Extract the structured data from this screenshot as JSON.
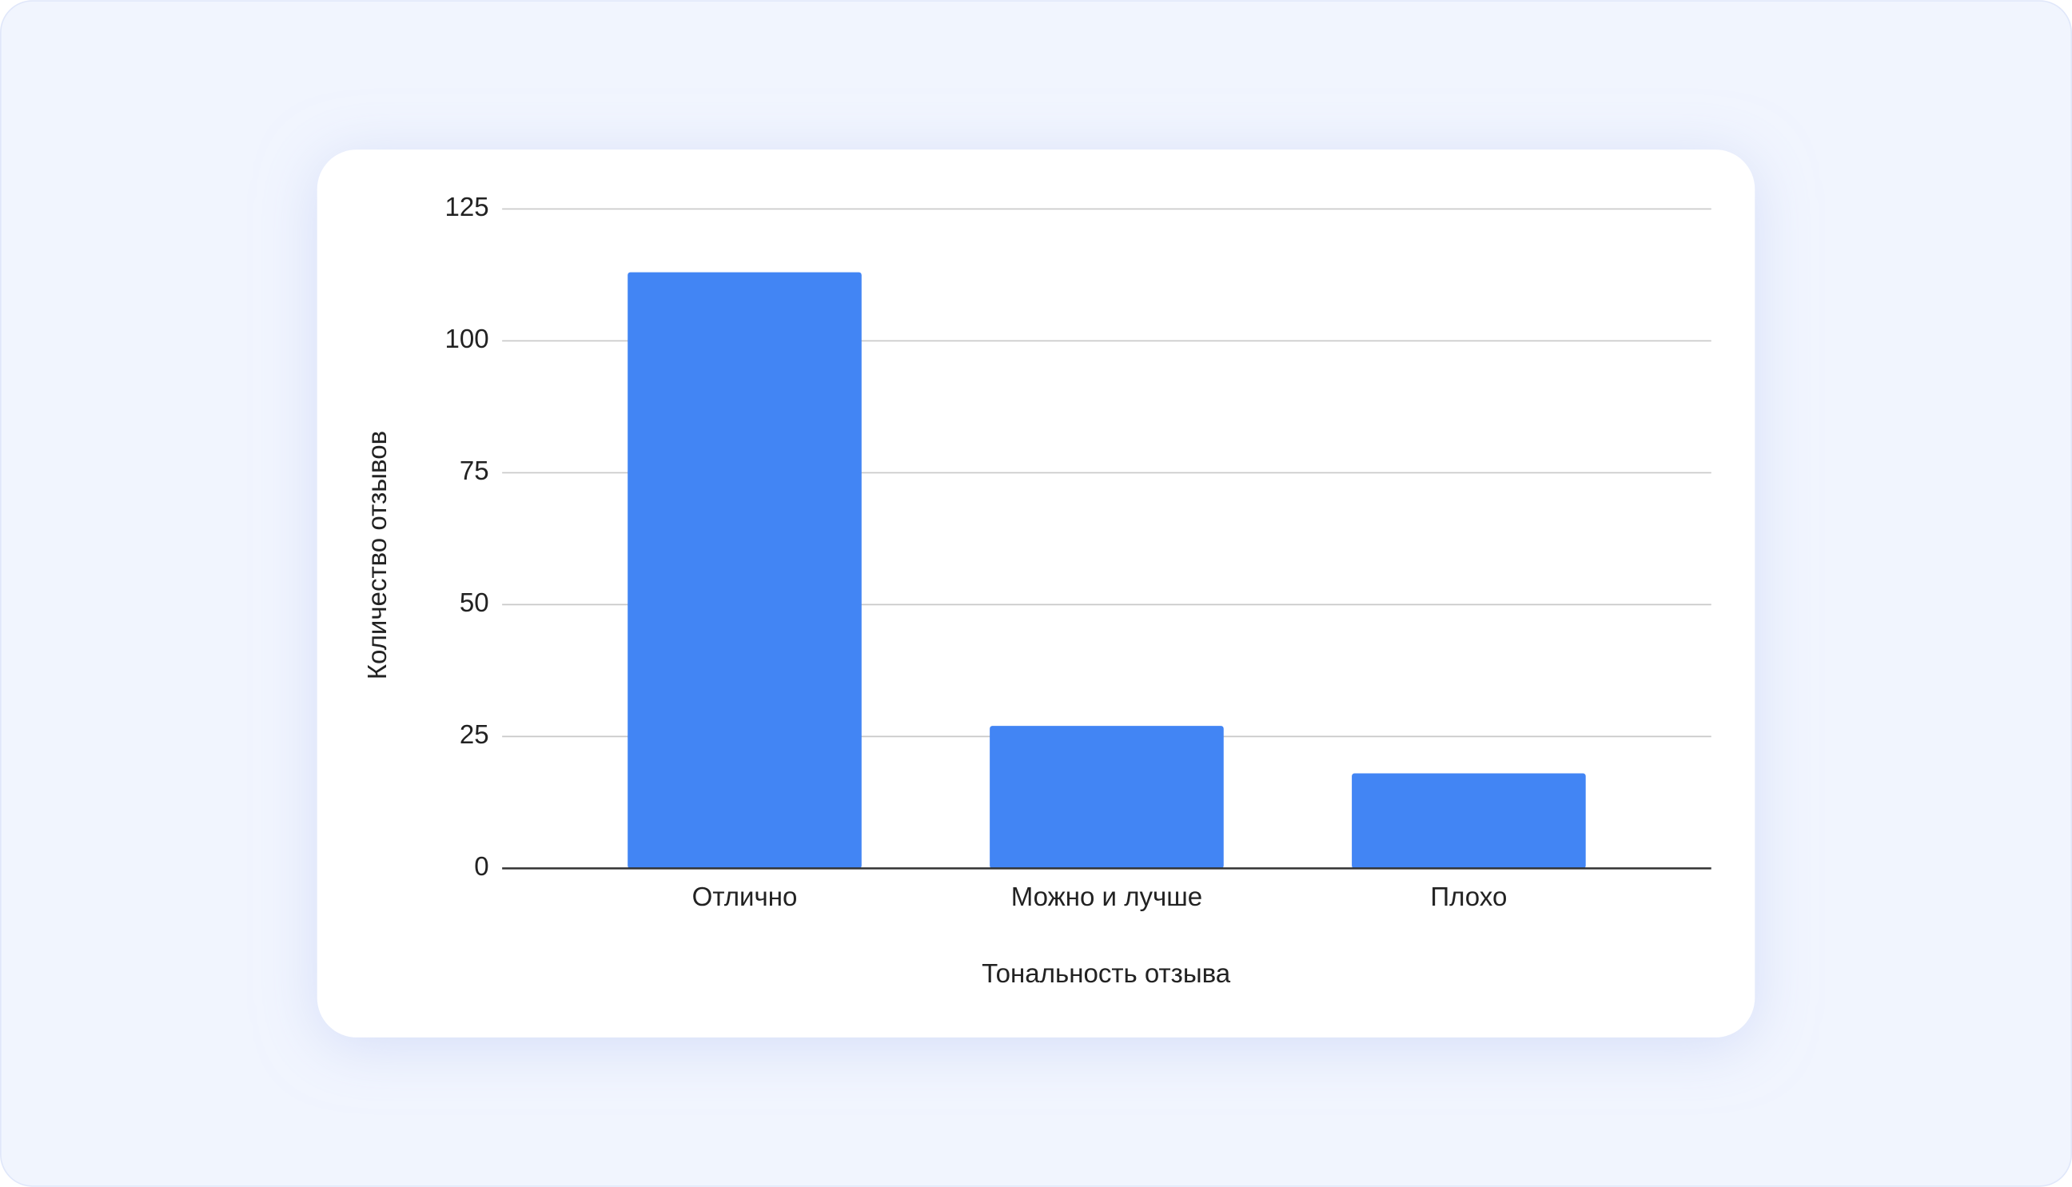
{
  "chart_data": {
    "type": "bar",
    "x_label": "Тональность отзыва",
    "y_label": "Количество отзывов",
    "categories": [
      "Отлично",
      "Можно и лучше",
      "Плохо"
    ],
    "values": [
      113,
      27,
      18
    ],
    "color": "#4285f4",
    "ylim": [
      0,
      125
    ],
    "yticks": [
      0,
      25,
      50,
      75,
      100,
      125
    ],
    "grid": true
  }
}
